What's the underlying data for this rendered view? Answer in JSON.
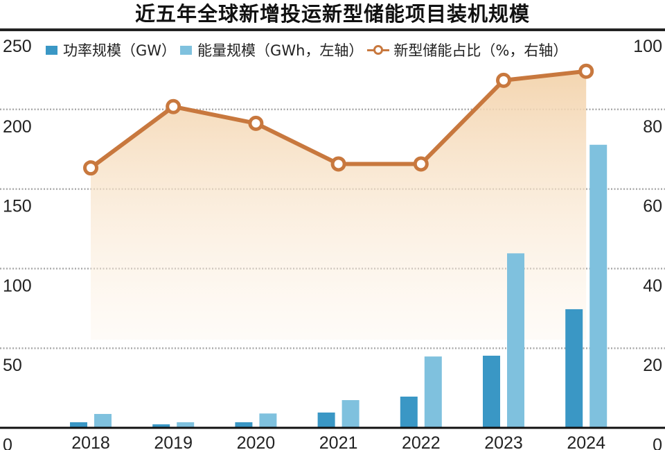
{
  "chart_data": {
    "type": "bar",
    "title": "近五年全球新增投运新型储能项目装机规模",
    "categories": [
      "2018",
      "2019",
      "2020",
      "2021",
      "2022",
      "2023",
      "2024"
    ],
    "series": [
      {
        "name": "功率规模（GW）",
        "type": "bar",
        "axis": "left",
        "color": "#3a97c5",
        "values": [
          3.5,
          2.2,
          3.5,
          9.6,
          19.6,
          45.3,
          74.5
        ]
      },
      {
        "name": "能量规模（GWh，左轴）",
        "type": "bar",
        "axis": "left",
        "color": "#7fc1de",
        "values": [
          8.7,
          3.5,
          9.0,
          17.4,
          44.8,
          109.6,
          177.8
        ]
      },
      {
        "name": "新型储能占比（%，右轴）",
        "type": "line",
        "axis": "right",
        "color": "#c8783e",
        "values": [
          65.3,
          80.7,
          76.5,
          66.3,
          66.3,
          87.3,
          89.6
        ]
      }
    ],
    "left_axis": {
      "range": [
        0,
        250
      ],
      "ticks": [
        "0",
        "50",
        "100",
        "150",
        "200",
        "250"
      ]
    },
    "right_axis": {
      "range": [
        0,
        100
      ],
      "ticks": [
        "0",
        "20",
        "40",
        "60",
        "80",
        "100"
      ]
    },
    "grid": true,
    "legend": "top"
  }
}
